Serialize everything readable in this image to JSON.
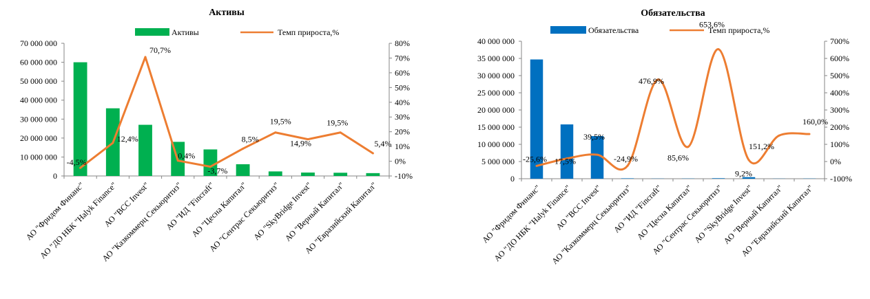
{
  "colors": {
    "assets_bar": "#00b050",
    "liabilities_bar": "#0070c0",
    "growth_line": "#ed7d31"
  },
  "chart_data": [
    {
      "type": "bar",
      "title": "Активы",
      "categories": [
        "АО \"Фридом Финанс\"",
        "АО \"ДО НБК \"Halyk Finance\"",
        "АО \"BCC Invest\"",
        "АО \"Казкоммерц Секьюритиз\"",
        "АО \"ИД \"Fincraft\"",
        "АО \"Цесна Капитал\"",
        "АО \"Сентрас Секьюритиз\"",
        "АО \"SkyBridge Invest\"",
        "АО \"Верный Капитал\"",
        "АО \"Евразийский Капитал\""
      ],
      "series": [
        {
          "name": "Активы",
          "type": "bar",
          "axis": "left",
          "values": [
            60000000,
            35700000,
            27000000,
            18000000,
            14000000,
            6200000,
            2400000,
            1800000,
            1700000,
            1500000
          ]
        },
        {
          "name": "Темп прироста,%",
          "type": "line",
          "axis": "right",
          "values": [
            -4.5,
            12.4,
            70.7,
            0.4,
            -3.7,
            8.5,
            19.5,
            14.9,
            19.5,
            5.4
          ],
          "labels": [
            "-4,5%",
            "12,4%",
            "70,7%",
            "0,4%",
            "-3,7%",
            "8,5%",
            "19,5%",
            "14,9%",
            "19,5%",
            "5,4%"
          ]
        }
      ],
      "y_left": {
        "min": 0,
        "max": 70000000,
        "step": 10000000,
        "tick_labels": [
          "0",
          "10 000 000",
          "20 000 000",
          "30 000 000",
          "40 000 000",
          "50 000 000",
          "60 000 000",
          "70 000 000"
        ]
      },
      "y_right": {
        "min": -10,
        "max": 80,
        "step": 10,
        "tick_labels": [
          "-10%",
          "0%",
          "10%",
          "20%",
          "30%",
          "40%",
          "50%",
          "60%",
          "70%",
          "80%"
        ]
      },
      "legend": "top",
      "grid": false
    },
    {
      "type": "bar",
      "title": "Обязательства",
      "categories": [
        "АО \"Фридом Финанс\"",
        "АО \"ДО НБК \"Halyk Finance\"",
        "АО \"BCC Invest\"",
        "АО \"Казкоммерц Секьюритиз\"",
        "АО \"ИД \"Fincraft\"",
        "АО \"Цесна Капитал\"",
        "АО \"Сентрас Секьюритиз\"",
        "АО \"SkyBridge Invest\"",
        "АО \"Верный Капитал\"",
        "АО \"Евразийский Капитал\""
      ],
      "series": [
        {
          "name": "Обязательства",
          "type": "bar",
          "axis": "left",
          "values": [
            34700000,
            15800000,
            12400000,
            120000,
            50000,
            60000,
            150000,
            450000,
            40000,
            60000
          ]
        },
        {
          "name": "Темп прироста,%",
          "type": "line",
          "axis": "right",
          "smooth": true,
          "values": [
            -25.6,
            17.5,
            39.5,
            -24.9,
            476.9,
            85.6,
            653.6,
            9.2,
            151.2,
            160.0
          ],
          "labels": [
            "-25,6%",
            "17,5%",
            "39,5%",
            "-24,9%",
            "476,9%",
            "85,6%",
            "653,6%",
            "9,2%",
            "151,2%",
            "160,0%"
          ]
        }
      ],
      "y_left": {
        "min": 0,
        "max": 40000000,
        "step": 5000000,
        "tick_labels": [
          "0",
          "5 000 000",
          "10 000 000",
          "15 000 000",
          "20 000 000",
          "25 000 000",
          "30 000 000",
          "35 000 000",
          "40 000 000"
        ]
      },
      "y_right": {
        "min": -100,
        "max": 700,
        "step": 100,
        "tick_labels": [
          "-100%",
          "0%",
          "100%",
          "200%",
          "300%",
          "400%",
          "500%",
          "600%",
          "700%"
        ]
      },
      "legend": "top",
      "grid": false
    }
  ]
}
